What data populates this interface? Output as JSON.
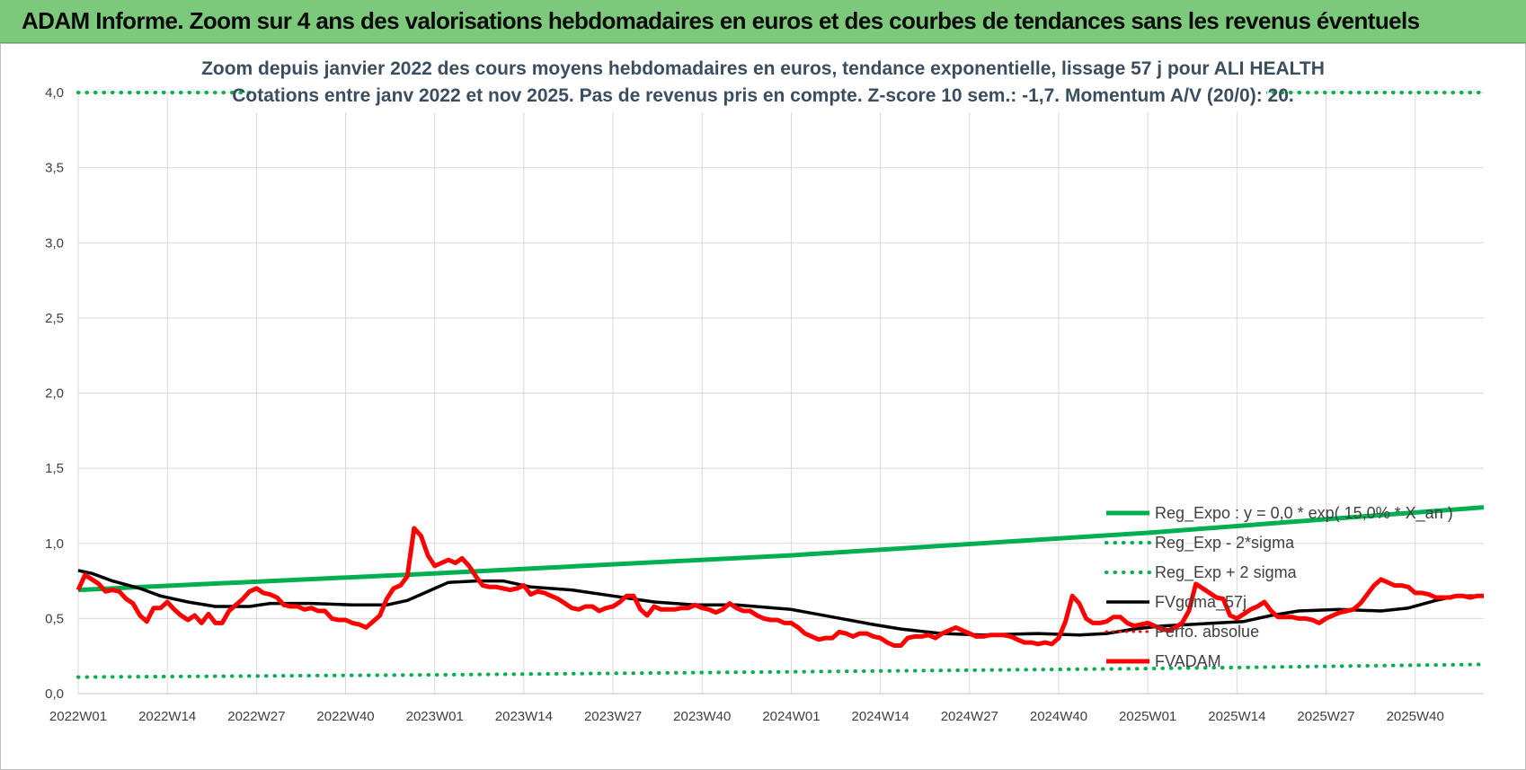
{
  "banner": {
    "title": "ADAM Informe. Zoom sur 4 ans des valorisations hebdomadaires en euros et des courbes de tendances sans les revenus éventuels"
  },
  "colors": {
    "banner_bg": "#7dc97b",
    "trend": "#00b050",
    "price": "#ff0000",
    "mavg": "#000000",
    "grid": "#d9d9d9"
  },
  "chart_data": {
    "type": "line",
    "title_lines": [
      "Zoom depuis janvier 2022 des cours moyens hebdomadaires en euros, tendance exponentielle, lissage 57 j pour ALI HEALTH",
      "Cotations entre janv 2022 et nov 2025. Pas de revenus pris en compte. Z-score 10 sem.: -1,7. Momentum A/V (20/0): 20."
    ],
    "xlabel": "",
    "ylabel": "",
    "ylim": [
      0,
      4
    ],
    "grid": true,
    "legend_position": "right",
    "x_ticks": [
      "2022W01",
      "2022W14",
      "2022W27",
      "2022W40",
      "2023W01",
      "2023W14",
      "2023W27",
      "2023W40",
      "2024W01",
      "2024W14",
      "2024W27",
      "2024W40",
      "2025W01",
      "2025W14",
      "2025W27",
      "2025W40"
    ],
    "y_ticks": [
      "0,0",
      "0,5",
      "1,0",
      "1,5",
      "2,0",
      "2,5",
      "3,0",
      "3,5",
      "4,0"
    ],
    "y_tick_values": [
      0,
      0.5,
      1.0,
      1.5,
      2.0,
      2.5,
      3.0,
      3.5,
      4.0
    ],
    "x_range_weeks": [
      0,
      205
    ],
    "series": [
      {
        "name": "Reg_Expo : y = 0,0 * exp( 15,0% * X_an )",
        "style": "solid-green",
        "points": [
          [
            0,
            0.69
          ],
          [
            52,
            0.8
          ],
          [
            104,
            0.92
          ],
          [
            156,
            1.07
          ],
          [
            205,
            1.24
          ]
        ]
      },
      {
        "name": "Reg_Exp - 2*sigma",
        "style": "dotted-green",
        "points": [
          [
            0,
            0.11
          ],
          [
            52,
            0.125
          ],
          [
            104,
            0.145
          ],
          [
            156,
            0.167
          ],
          [
            205,
            0.195
          ]
        ]
      },
      {
        "name": "Reg_Exp + 2 sigma",
        "style": "dotted-green",
        "points": [
          [
            0,
            4.0
          ],
          [
            205,
            4.0
          ]
        ]
      },
      {
        "name": "FVgdma_57j",
        "style": "solid-black",
        "points": [
          [
            0,
            0.82
          ],
          [
            2,
            0.8
          ],
          [
            5,
            0.75
          ],
          [
            9,
            0.7
          ],
          [
            12,
            0.65
          ],
          [
            16,
            0.61
          ],
          [
            20,
            0.58
          ],
          [
            25,
            0.58
          ],
          [
            28,
            0.6
          ],
          [
            34,
            0.6
          ],
          [
            40,
            0.59
          ],
          [
            45,
            0.59
          ],
          [
            48,
            0.62
          ],
          [
            50,
            0.66
          ],
          [
            52,
            0.7
          ],
          [
            54,
            0.74
          ],
          [
            58,
            0.75
          ],
          [
            62,
            0.75
          ],
          [
            66,
            0.71
          ],
          [
            72,
            0.69
          ],
          [
            78,
            0.65
          ],
          [
            84,
            0.61
          ],
          [
            90,
            0.59
          ],
          [
            96,
            0.59
          ],
          [
            104,
            0.56
          ],
          [
            110,
            0.51
          ],
          [
            116,
            0.46
          ],
          [
            120,
            0.43
          ],
          [
            126,
            0.4
          ],
          [
            132,
            0.39
          ],
          [
            140,
            0.4
          ],
          [
            146,
            0.39
          ],
          [
            150,
            0.4
          ],
          [
            154,
            0.43
          ],
          [
            158,
            0.45
          ],
          [
            162,
            0.46
          ],
          [
            166,
            0.47
          ],
          [
            170,
            0.48
          ],
          [
            174,
            0.52
          ],
          [
            178,
            0.55
          ],
          [
            184,
            0.56
          ],
          [
            190,
            0.55
          ],
          [
            194,
            0.57
          ],
          [
            198,
            0.62
          ],
          [
            201,
            0.65
          ],
          [
            205,
            0.65
          ]
        ]
      },
      {
        "name": "Perfo. absolue",
        "style": "dotted-red",
        "points": []
      },
      {
        "name": "FVADAM",
        "style": "solid-red",
        "points": [
          [
            0,
            0.69
          ],
          [
            1,
            0.79
          ],
          [
            2,
            0.76
          ],
          [
            3,
            0.73
          ],
          [
            4,
            0.68
          ],
          [
            5,
            0.69
          ],
          [
            6,
            0.68
          ],
          [
            7,
            0.63
          ],
          [
            8,
            0.6
          ],
          [
            9,
            0.52
          ],
          [
            10,
            0.48
          ],
          [
            11,
            0.57
          ],
          [
            12,
            0.57
          ],
          [
            13,
            0.61
          ],
          [
            14,
            0.56
          ],
          [
            15,
            0.52
          ],
          [
            16,
            0.49
          ],
          [
            17,
            0.52
          ],
          [
            18,
            0.47
          ],
          [
            19,
            0.53
          ],
          [
            20,
            0.47
          ],
          [
            21,
            0.47
          ],
          [
            22,
            0.55
          ],
          [
            23,
            0.59
          ],
          [
            24,
            0.63
          ],
          [
            25,
            0.68
          ],
          [
            26,
            0.7
          ],
          [
            27,
            0.67
          ],
          [
            28,
            0.66
          ],
          [
            29,
            0.64
          ],
          [
            30,
            0.59
          ],
          [
            31,
            0.58
          ],
          [
            32,
            0.58
          ],
          [
            33,
            0.56
          ],
          [
            34,
            0.57
          ],
          [
            35,
            0.55
          ],
          [
            36,
            0.55
          ],
          [
            37,
            0.5
          ],
          [
            38,
            0.49
          ],
          [
            39,
            0.49
          ],
          [
            40,
            0.47
          ],
          [
            41,
            0.46
          ],
          [
            42,
            0.44
          ],
          [
            43,
            0.48
          ],
          [
            44,
            0.52
          ],
          [
            45,
            0.63
          ],
          [
            46,
            0.7
          ],
          [
            47,
            0.72
          ],
          [
            48,
            0.78
          ],
          [
            49,
            1.1
          ],
          [
            50,
            1.05
          ],
          [
            51,
            0.92
          ],
          [
            52,
            0.85
          ],
          [
            53,
            0.87
          ],
          [
            54,
            0.89
          ],
          [
            55,
            0.87
          ],
          [
            56,
            0.9
          ],
          [
            57,
            0.85
          ],
          [
            58,
            0.78
          ],
          [
            59,
            0.72
          ],
          [
            60,
            0.71
          ],
          [
            61,
            0.71
          ],
          [
            62,
            0.7
          ],
          [
            63,
            0.69
          ],
          [
            64,
            0.7
          ],
          [
            65,
            0.72
          ],
          [
            66,
            0.66
          ],
          [
            67,
            0.68
          ],
          [
            68,
            0.67
          ],
          [
            69,
            0.65
          ],
          [
            70,
            0.63
          ],
          [
            71,
            0.6
          ],
          [
            72,
            0.57
          ],
          [
            73,
            0.56
          ],
          [
            74,
            0.58
          ],
          [
            75,
            0.58
          ],
          [
            76,
            0.55
          ],
          [
            77,
            0.57
          ],
          [
            78,
            0.58
          ],
          [
            79,
            0.61
          ],
          [
            80,
            0.65
          ],
          [
            81,
            0.65
          ],
          [
            82,
            0.56
          ],
          [
            83,
            0.52
          ],
          [
            84,
            0.58
          ],
          [
            85,
            0.56
          ],
          [
            86,
            0.56
          ],
          [
            87,
            0.56
          ],
          [
            88,
            0.57
          ],
          [
            89,
            0.57
          ],
          [
            90,
            0.59
          ],
          [
            91,
            0.57
          ],
          [
            92,
            0.56
          ],
          [
            93,
            0.54
          ],
          [
            94,
            0.56
          ],
          [
            95,
            0.6
          ],
          [
            96,
            0.57
          ],
          [
            97,
            0.55
          ],
          [
            98,
            0.55
          ],
          [
            99,
            0.52
          ],
          [
            100,
            0.5
          ],
          [
            101,
            0.49
          ],
          [
            102,
            0.49
          ],
          [
            103,
            0.47
          ],
          [
            104,
            0.47
          ],
          [
            105,
            0.44
          ],
          [
            106,
            0.4
          ],
          [
            107,
            0.38
          ],
          [
            108,
            0.36
          ],
          [
            109,
            0.37
          ],
          [
            110,
            0.37
          ],
          [
            111,
            0.41
          ],
          [
            112,
            0.4
          ],
          [
            113,
            0.38
          ],
          [
            114,
            0.4
          ],
          [
            115,
            0.4
          ],
          [
            116,
            0.38
          ],
          [
            117,
            0.37
          ],
          [
            118,
            0.34
          ],
          [
            119,
            0.32
          ],
          [
            120,
            0.32
          ],
          [
            121,
            0.37
          ],
          [
            122,
            0.38
          ],
          [
            123,
            0.38
          ],
          [
            124,
            0.39
          ],
          [
            125,
            0.37
          ],
          [
            126,
            0.4
          ],
          [
            127,
            0.42
          ],
          [
            128,
            0.44
          ],
          [
            129,
            0.42
          ],
          [
            130,
            0.4
          ],
          [
            131,
            0.38
          ],
          [
            132,
            0.38
          ],
          [
            133,
            0.39
          ],
          [
            134,
            0.39
          ],
          [
            135,
            0.39
          ],
          [
            136,
            0.38
          ],
          [
            137,
            0.36
          ],
          [
            138,
            0.34
          ],
          [
            139,
            0.34
          ],
          [
            140,
            0.33
          ],
          [
            141,
            0.34
          ],
          [
            142,
            0.33
          ],
          [
            143,
            0.37
          ],
          [
            144,
            0.48
          ],
          [
            145,
            0.65
          ],
          [
            146,
            0.6
          ],
          [
            147,
            0.5
          ],
          [
            148,
            0.47
          ],
          [
            149,
            0.47
          ],
          [
            150,
            0.48
          ],
          [
            151,
            0.51
          ],
          [
            152,
            0.51
          ],
          [
            153,
            0.47
          ],
          [
            154,
            0.45
          ],
          [
            155,
            0.46
          ],
          [
            156,
            0.47
          ],
          [
            157,
            0.45
          ],
          [
            158,
            0.43
          ],
          [
            159,
            0.42
          ],
          [
            160,
            0.44
          ],
          [
            161,
            0.47
          ],
          [
            162,
            0.55
          ],
          [
            163,
            0.73
          ],
          [
            164,
            0.7
          ],
          [
            165,
            0.67
          ],
          [
            166,
            0.64
          ],
          [
            167,
            0.63
          ],
          [
            168,
            0.52
          ],
          [
            169,
            0.5
          ],
          [
            170,
            0.53
          ],
          [
            171,
            0.56
          ],
          [
            172,
            0.58
          ],
          [
            173,
            0.61
          ],
          [
            174,
            0.55
          ],
          [
            175,
            0.51
          ],
          [
            176,
            0.51
          ],
          [
            177,
            0.51
          ],
          [
            178,
            0.5
          ],
          [
            179,
            0.5
          ],
          [
            180,
            0.49
          ],
          [
            181,
            0.47
          ],
          [
            182,
            0.5
          ],
          [
            183,
            0.52
          ],
          [
            184,
            0.54
          ],
          [
            185,
            0.55
          ],
          [
            186,
            0.56
          ],
          [
            187,
            0.6
          ],
          [
            188,
            0.66
          ],
          [
            189,
            0.72
          ],
          [
            190,
            0.76
          ],
          [
            191,
            0.74
          ],
          [
            192,
            0.72
          ],
          [
            193,
            0.72
          ],
          [
            194,
            0.71
          ],
          [
            195,
            0.67
          ],
          [
            196,
            0.67
          ],
          [
            197,
            0.66
          ],
          [
            198,
            0.64
          ],
          [
            199,
            0.64
          ],
          [
            200,
            0.64
          ],
          [
            201,
            0.65
          ],
          [
            202,
            0.65
          ],
          [
            203,
            0.64
          ],
          [
            204,
            0.65
          ],
          [
            205,
            0.65
          ]
        ]
      }
    ]
  }
}
